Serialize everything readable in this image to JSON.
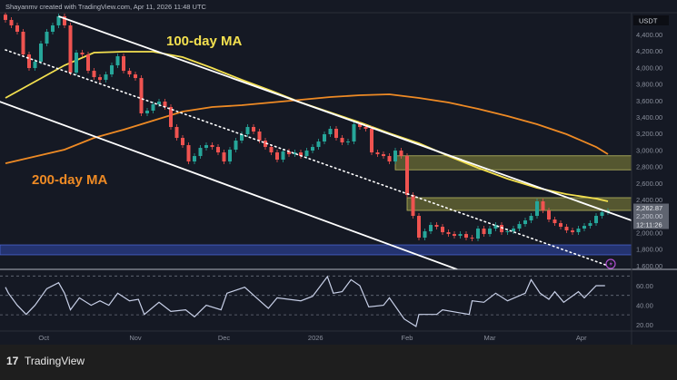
{
  "header": {
    "attribution": "Shayanmv created with TradingView.com, Apr 11, 2026 11:48 UTC"
  },
  "footer": {
    "brand": "TradingView",
    "logo_mark": "17"
  },
  "colors": {
    "up": "#26a69a",
    "down": "#ef5350",
    "ma100": "#f3e04f",
    "ma200": "#ee8a24",
    "zone_yellow": "#8a8a3a",
    "zone_blue": "#2a3c8a",
    "rsi": "#c8d0e8",
    "background": "#151924"
  },
  "chart_data": [
    {
      "type": "candlestick",
      "title": "",
      "currency": "USDT",
      "last_price": "2,262.87",
      "countdown": "12:11:26",
      "y_ticks": [
        "4,400.00",
        "4,200.00",
        "4,000.00",
        "3,800.00",
        "3,600.00",
        "3,400.00",
        "3,200.00",
        "3,000.00",
        "2,800.00",
        "2,600.00",
        "2,400.00",
        "2,200.00",
        "2,000.00",
        "1,800.00",
        "1,600.00"
      ],
      "y_tick_values": [
        4400,
        4200,
        4000,
        3800,
        3600,
        3400,
        3200,
        3000,
        2800,
        2600,
        2400,
        2200,
        2000,
        1800,
        1600
      ],
      "x_ticks": [
        {
          "label": "Oct",
          "date": "2025-10-01"
        },
        {
          "label": "Nov",
          "date": "2025-11-01"
        },
        {
          "label": "Dec",
          "date": "2025-12-01"
        },
        {
          "label": "2026",
          "date": "2026-01-01"
        },
        {
          "label": "Feb",
          "date": "2026-02-01"
        },
        {
          "label": "Mar",
          "date": "2026-03-01"
        },
        {
          "label": "Apr",
          "date": "2026-04-01"
        }
      ],
      "first_open": 4640,
      "closes": [
        [
          "2025-09-18",
          4576
        ],
        [
          "2025-09-20",
          4510
        ],
        [
          "2025-09-22",
          4433
        ],
        [
          "2025-09-24",
          4158
        ],
        [
          "2025-09-26",
          3993
        ],
        [
          "2025-09-28",
          4070
        ],
        [
          "2025-09-30",
          4290
        ],
        [
          "2025-10-02",
          4433
        ],
        [
          "2025-10-04",
          4510
        ],
        [
          "2025-10-06",
          4620
        ],
        [
          "2025-10-08",
          4510
        ],
        [
          "2025-10-10",
          3938
        ],
        [
          "2025-10-12",
          4180
        ],
        [
          "2025-10-14",
          4158
        ],
        [
          "2025-10-16",
          3960
        ],
        [
          "2025-10-18",
          3883
        ],
        [
          "2025-10-20",
          3850
        ],
        [
          "2025-10-22",
          3916
        ],
        [
          "2025-10-24",
          4026
        ],
        [
          "2025-10-26",
          4136
        ],
        [
          "2025-10-28",
          3960
        ],
        [
          "2025-10-30",
          3916
        ],
        [
          "2025-11-01",
          3872
        ],
        [
          "2025-11-03",
          3444
        ],
        [
          "2025-11-05",
          3477
        ],
        [
          "2025-11-07",
          3554
        ],
        [
          "2025-11-09",
          3587
        ],
        [
          "2025-11-11",
          3521
        ],
        [
          "2025-11-13",
          3279
        ],
        [
          "2025-11-15",
          3147
        ],
        [
          "2025-11-17",
          3059
        ],
        [
          "2025-11-19",
          2861
        ],
        [
          "2025-11-21",
          2927
        ],
        [
          "2025-11-23",
          3026
        ],
        [
          "2025-11-25",
          3059
        ],
        [
          "2025-11-27",
          3037
        ],
        [
          "2025-11-29",
          2971
        ],
        [
          "2025-12-01",
          2861
        ],
        [
          "2025-12-03",
          3004
        ],
        [
          "2025-12-05",
          3114
        ],
        [
          "2025-12-07",
          3191
        ],
        [
          "2025-12-09",
          3279
        ],
        [
          "2025-12-11",
          3224
        ],
        [
          "2025-12-13",
          3114
        ],
        [
          "2025-12-15",
          3037
        ],
        [
          "2025-12-17",
          2971
        ],
        [
          "2025-12-19",
          2883
        ],
        [
          "2025-12-21",
          2982
        ],
        [
          "2025-12-23",
          2949
        ],
        [
          "2025-12-25",
          2971
        ],
        [
          "2025-12-27",
          2927
        ],
        [
          "2025-12-29",
          2993
        ],
        [
          "2025-12-31",
          3037
        ],
        [
          "2026-01-02",
          3103
        ],
        [
          "2026-01-04",
          3191
        ],
        [
          "2026-01-06",
          3257
        ],
        [
          "2026-01-08",
          3147
        ],
        [
          "2026-01-10",
          3092
        ],
        [
          "2026-01-12",
          3103
        ],
        [
          "2026-01-14",
          3312
        ],
        [
          "2026-01-16",
          3279
        ],
        [
          "2026-01-18",
          3257
        ],
        [
          "2026-01-20",
          2971
        ],
        [
          "2026-01-22",
          2949
        ],
        [
          "2026-01-24",
          2927
        ],
        [
          "2026-01-26",
          2861
        ],
        [
          "2026-01-28",
          2993
        ],
        [
          "2026-01-30",
          2927
        ],
        [
          "2026-02-01",
          2455
        ],
        [
          "2026-02-03",
          2202
        ],
        [
          "2026-02-05",
          1938
        ],
        [
          "2026-02-07",
          2015
        ],
        [
          "2026-02-09",
          2092
        ],
        [
          "2026-02-11",
          2070
        ],
        [
          "2026-02-13",
          2004
        ],
        [
          "2026-02-15",
          1982
        ],
        [
          "2026-02-17",
          1960
        ],
        [
          "2026-02-19",
          1982
        ],
        [
          "2026-02-21",
          1938
        ],
        [
          "2026-02-23",
          1927
        ],
        [
          "2026-02-25",
          2048
        ],
        [
          "2026-02-27",
          1982
        ],
        [
          "2026-03-01",
          2048
        ],
        [
          "2026-03-03",
          2092
        ],
        [
          "2026-03-05",
          2004
        ],
        [
          "2026-03-07",
          2015
        ],
        [
          "2026-03-09",
          2048
        ],
        [
          "2026-03-11",
          2103
        ],
        [
          "2026-03-13",
          2147
        ],
        [
          "2026-03-15",
          2202
        ],
        [
          "2026-03-17",
          2378
        ],
        [
          "2026-03-19",
          2268
        ],
        [
          "2026-03-21",
          2158
        ],
        [
          "2026-03-23",
          2114
        ],
        [
          "2026-03-25",
          2070
        ],
        [
          "2026-03-27",
          2026
        ],
        [
          "2026-03-29",
          2004
        ],
        [
          "2026-03-31",
          2048
        ],
        [
          "2026-04-02",
          2081
        ],
        [
          "2026-04-04",
          2114
        ],
        [
          "2026-04-06",
          2202
        ],
        [
          "2026-04-08",
          2246
        ],
        [
          "2026-04-10",
          2263
        ]
      ],
      "moving_averages": [
        {
          "name": "100-day MA",
          "color_key": "ma100",
          "points": [
            [
              "2025-09-18",
              3631
            ],
            [
              "2025-10-08",
              4026
            ],
            [
              "2025-10-18",
              4180
            ],
            [
              "2025-10-28",
              4191
            ],
            [
              "2025-11-07",
              4191
            ],
            [
              "2025-11-17",
              4125
            ],
            [
              "2025-11-27",
              3993
            ],
            [
              "2025-12-07",
              3850
            ],
            [
              "2025-12-17",
              3718
            ],
            [
              "2025-12-27",
              3576
            ],
            [
              "2026-01-06",
              3455
            ],
            [
              "2026-01-16",
              3334
            ],
            [
              "2026-01-26",
              3202
            ],
            [
              "2026-02-05",
              3081
            ],
            [
              "2026-02-15",
              2927
            ],
            [
              "2026-02-25",
              2784
            ],
            [
              "2026-03-07",
              2652
            ],
            [
              "2026-03-17",
              2542
            ],
            [
              "2026-03-27",
              2465
            ],
            [
              "2026-04-06",
              2411
            ],
            [
              "2026-04-10",
              2378
            ]
          ]
        },
        {
          "name": "200-day MA",
          "color_key": "ma200",
          "points": [
            [
              "2025-09-18",
              2839
            ],
            [
              "2025-10-08",
              3004
            ],
            [
              "2025-10-18",
              3147
            ],
            [
              "2025-10-28",
              3246
            ],
            [
              "2025-11-07",
              3356
            ],
            [
              "2025-11-17",
              3466
            ],
            [
              "2025-11-27",
              3521
            ],
            [
              "2025-12-07",
              3543
            ],
            [
              "2025-12-17",
              3576
            ],
            [
              "2025-12-27",
              3609
            ],
            [
              "2026-01-06",
              3642
            ],
            [
              "2026-01-16",
              3664
            ],
            [
              "2026-01-26",
              3675
            ],
            [
              "2026-02-05",
              3631
            ],
            [
              "2026-02-15",
              3576
            ],
            [
              "2026-02-25",
              3499
            ],
            [
              "2026-03-07",
              3411
            ],
            [
              "2026-03-17",
              3312
            ],
            [
              "2026-03-27",
              3191
            ],
            [
              "2026-04-06",
              3037
            ],
            [
              "2026-04-10",
              2949
            ]
          ]
        }
      ],
      "trendlines": [
        {
          "style": "solid",
          "from": [
            "2025-10-06",
            4620
          ],
          "to": [
            "2026-04-18",
            2147
          ]
        },
        {
          "style": "solid",
          "from": [
            "2025-09-16",
            3587
          ],
          "to": [
            "2026-02-18",
            1553
          ]
        },
        {
          "style": "dotted",
          "from": [
            "2025-09-18",
            4213
          ],
          "to": [
            "2026-04-10",
            1598
          ]
        }
      ],
      "zones": [
        {
          "color_key": "zone_yellow",
          "from_date": "2026-01-28",
          "low": 2760,
          "high": 2930
        },
        {
          "color_key": "zone_yellow",
          "from_date": "2026-02-01",
          "low": 2268,
          "high": 2422
        },
        {
          "color_key": "zone_blue",
          "from_date": "2025-09-16",
          "low": 1730,
          "high": 1850
        }
      ]
    },
    {
      "type": "line",
      "title": "",
      "y_ticks": [
        "60.00",
        "40.00",
        "20.00"
      ],
      "y_tick_values": [
        60,
        40,
        20
      ],
      "levels": [
        70,
        50,
        30
      ],
      "points": [
        [
          "2025-09-18",
          58.4
        ],
        [
          "2025-09-19",
          52.2
        ],
        [
          "2025-09-22",
          39.8
        ],
        [
          "2025-09-25",
          30.4
        ],
        [
          "2025-09-28",
          39.8
        ],
        [
          "2025-10-02",
          56.9
        ],
        [
          "2025-10-06",
          63.1
        ],
        [
          "2025-10-08",
          52.2
        ],
        [
          "2025-10-10",
          35.1
        ],
        [
          "2025-10-13",
          47.5
        ],
        [
          "2025-10-17",
          39.8
        ],
        [
          "2025-10-20",
          44.4
        ],
        [
          "2025-10-23",
          39.8
        ],
        [
          "2025-10-26",
          52.2
        ],
        [
          "2025-10-30",
          44.4
        ],
        [
          "2025-11-02",
          46
        ],
        [
          "2025-11-04",
          30.4
        ],
        [
          "2025-11-09",
          42.9
        ],
        [
          "2025-11-13",
          33.5
        ],
        [
          "2025-11-18",
          35.1
        ],
        [
          "2025-11-21",
          27.9
        ],
        [
          "2025-11-25",
          39.8
        ],
        [
          "2025-11-30",
          35.1
        ],
        [
          "2025-12-02",
          52.2
        ],
        [
          "2025-12-08",
          58.4
        ],
        [
          "2025-12-12",
          47.5
        ],
        [
          "2025-12-16",
          36.6
        ],
        [
          "2025-12-19",
          47.5
        ],
        [
          "2025-12-27",
          44.4
        ],
        [
          "2025-12-31",
          49.1
        ],
        [
          "2026-01-05",
          69.3
        ],
        [
          "2026-01-07",
          52.2
        ],
        [
          "2026-01-10",
          53.8
        ],
        [
          "2026-01-13",
          66.2
        ],
        [
          "2026-01-16",
          60
        ],
        [
          "2026-01-19",
          38.2
        ],
        [
          "2026-01-24",
          39.8
        ],
        [
          "2026-01-26",
          47.5
        ],
        [
          "2026-01-31",
          25.7
        ],
        [
          "2026-02-04",
          18
        ],
        [
          "2026-02-05",
          30.4
        ],
        [
          "2026-02-11",
          30.4
        ],
        [
          "2026-02-13",
          35.1
        ],
        [
          "2026-02-22",
          30.4
        ],
        [
          "2026-02-23",
          44.4
        ],
        [
          "2026-02-27",
          42.9
        ],
        [
          "2026-03-03",
          52.2
        ],
        [
          "2026-03-07",
          44.4
        ],
        [
          "2026-03-13",
          52.2
        ],
        [
          "2026-03-15",
          66.2
        ],
        [
          "2026-03-18",
          52.2
        ],
        [
          "2026-03-21",
          46
        ],
        [
          "2026-03-23",
          53.8
        ],
        [
          "2026-03-26",
          42.9
        ],
        [
          "2026-03-31",
          53.8
        ],
        [
          "2026-04-02",
          47.5
        ],
        [
          "2026-04-06",
          60
        ],
        [
          "2026-04-09",
          60
        ]
      ]
    }
  ],
  "annotations": {
    "ma100_label": "100-day MA",
    "ma200_label": "200-day MA"
  },
  "icons": {
    "alert": "lightning-icon"
  }
}
